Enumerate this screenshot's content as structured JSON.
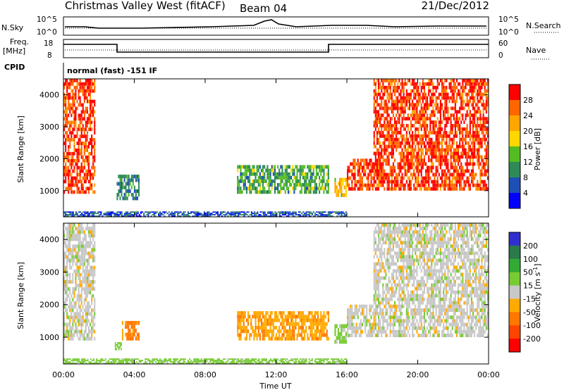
{
  "header": {
    "station": "Christmas Valley West (fitACF)",
    "beam": "Beam 04",
    "date": "21/Dec/2012"
  },
  "summary_panels": {
    "sky": {
      "label": "N.Sky",
      "ticks": [
        "10^5",
        "10^0"
      ]
    },
    "search": {
      "label": "N.Search",
      "ticks": [
        "10^5",
        "10^0"
      ]
    },
    "freq": {
      "label_line1": "Freq.",
      "label_line2": "[MHz]",
      "ticks": [
        "18",
        "8"
      ]
    },
    "nave": {
      "label": "Nave",
      "ticks": [
        "60",
        "0"
      ]
    },
    "cpid": {
      "label": "CPID",
      "value": "normal (fast) -151 IF"
    }
  },
  "colors": {
    "power_scale": [
      "#0000ff",
      "#1e4fb4",
      "#2e8b57",
      "#55bb22",
      "#ffd700",
      "#ffa500",
      "#ff6600",
      "#ff0000"
    ],
    "velocity_scale": [
      "#3030d0",
      "#2a7a4a",
      "#33aa33",
      "#77cc33",
      "#c8c8c8",
      "#ffaa00",
      "#ff7700",
      "#ff4400",
      "#ff0000"
    ]
  },
  "chart_data": [
    {
      "type": "heatmap",
      "name": "power",
      "xlabel": "",
      "ylabel": "Slant Range [km]",
      "xlim": [
        "00:00",
        "24:00"
      ],
      "ylim": [
        180,
        4500
      ],
      "yticks": [
        "1000",
        "2000",
        "3000",
        "4000"
      ],
      "colorbar": {
        "label": "Power [dB]",
        "ticks": [
          "4",
          "8",
          "12",
          "16",
          "20",
          "24",
          "28"
        ]
      },
      "regions": [
        {
          "t": [
            0.0,
            1.8
          ],
          "range": [
            900,
            4500
          ],
          "value": 28
        },
        {
          "t": [
            3.0,
            4.3
          ],
          "range": [
            700,
            1500
          ],
          "value": 10
        },
        {
          "t": [
            9.8,
            15.0
          ],
          "range": [
            900,
            1800
          ],
          "value": 12
        },
        {
          "t": [
            15.3,
            16.0
          ],
          "range": [
            800,
            1400
          ],
          "value": 20
        },
        {
          "t": [
            16.0,
            24.0
          ],
          "range": [
            1000,
            2000
          ],
          "value": 28
        },
        {
          "t": [
            17.5,
            24.0
          ],
          "range": [
            2000,
            4500
          ],
          "value": 28
        },
        {
          "t": [
            0.0,
            16.0
          ],
          "range": [
            180,
            350
          ],
          "value": 6
        }
      ]
    },
    {
      "type": "heatmap",
      "name": "velocity",
      "xlabel": "Time UT",
      "ylabel": "Slant Range [km]",
      "xlim": [
        "00:00",
        "24:00"
      ],
      "ylim": [
        180,
        4500
      ],
      "xticks": [
        "00:00",
        "04:00",
        "08:00",
        "12:00",
        "16:00",
        "20:00",
        "00:00"
      ],
      "yticks": [
        "1000",
        "2000",
        "3000",
        "4000"
      ],
      "colorbar": {
        "label_main": "Velocity [m s",
        "label_exp": "-1",
        "label_end": "]",
        "ticks": [
          "200",
          "100",
          "50",
          "15",
          "-15",
          "-50",
          "-100",
          "-200"
        ]
      },
      "regions": [
        {
          "t": [
            0.0,
            1.8
          ],
          "range": [
            900,
            4500
          ],
          "value": 0
        },
        {
          "t": [
            2.9,
            3.3
          ],
          "range": [
            600,
            850
          ],
          "value": 40
        },
        {
          "t": [
            3.3,
            4.3
          ],
          "range": [
            900,
            1500
          ],
          "value": -60
        },
        {
          "t": [
            9.8,
            15.0
          ],
          "range": [
            900,
            1800
          ],
          "value": -40
        },
        {
          "t": [
            15.3,
            16.0
          ],
          "range": [
            800,
            1400
          ],
          "value": 30
        },
        {
          "t": [
            16.0,
            24.0
          ],
          "range": [
            1000,
            2000
          ],
          "value": 0
        },
        {
          "t": [
            17.5,
            24.0
          ],
          "range": [
            2000,
            4500
          ],
          "value": 0
        },
        {
          "t": [
            0.0,
            16.0
          ],
          "range": [
            180,
            350
          ],
          "value": 30
        }
      ]
    }
  ]
}
